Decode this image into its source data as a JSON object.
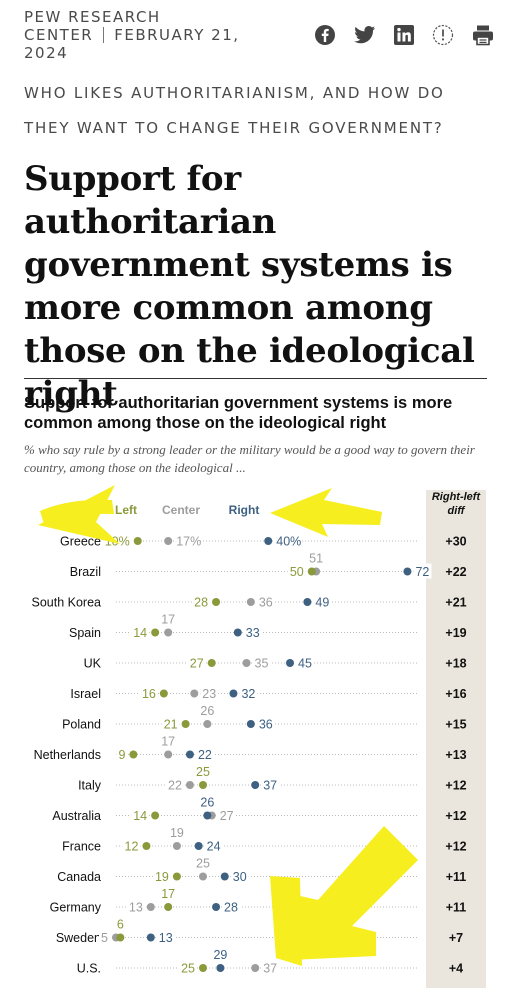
{
  "header": {
    "brand_line1": "PEW RESEARCH",
    "brand_line2": "CENTER",
    "date": "FEBRUARY 21,",
    "year": "2024",
    "share_icons": [
      "facebook-icon",
      "twitter-icon",
      "linkedin-icon",
      "info-icon",
      "print-icon"
    ]
  },
  "kicker": "WHO LIKES AUTHORITARIANISM, AND HOW DO THEY WANT TO CHANGE THEIR GOVERNMENT?",
  "headline": "Support for authoritarian government systems is more common among those on the ideological right",
  "colors": {
    "left": "#8a9a3b",
    "center": "#9d9d9d",
    "right": "#3e6182",
    "highlight": "#f6ee1f",
    "diff_bg": "#ebe6dd"
  },
  "chart_data": {
    "type": "scatter",
    "title": "Support for authoritarian government systems is more common among those on the ideological right",
    "subtitle": "% who say rule by a strong leader or the military would be a good way to govern their country, among those on the ideological ...",
    "legend": [
      "Left",
      "Center",
      "Right"
    ],
    "diff_header": "Right-left diff",
    "countries": [
      {
        "name": "Greece",
        "left": 10,
        "center": 17,
        "right": 40,
        "diff": "+30",
        "left_label": "10%",
        "center_label": "17%",
        "right_label": "40%"
      },
      {
        "name": "Brazil",
        "left": 50,
        "center": 51,
        "right": 72,
        "diff": "+22",
        "left_label": "50",
        "center_label": "51",
        "right_label": "72"
      },
      {
        "name": "South Korea",
        "left": 28,
        "center": 36,
        "right": 49,
        "diff": "+21",
        "left_label": "28",
        "center_label": "36",
        "right_label": "49"
      },
      {
        "name": "Spain",
        "left": 14,
        "center": 17,
        "right": 33,
        "diff": "+19",
        "left_label": "14",
        "center_label": "17",
        "right_label": "33"
      },
      {
        "name": "UK",
        "left": 27,
        "center": 35,
        "right": 45,
        "diff": "+18",
        "left_label": "27",
        "center_label": "35",
        "right_label": "45"
      },
      {
        "name": "Israel",
        "left": 16,
        "center": 23,
        "right": 32,
        "diff": "+16",
        "left_label": "16",
        "center_label": "23",
        "right_label": "32"
      },
      {
        "name": "Poland",
        "left": 21,
        "center": 26,
        "right": 36,
        "diff": "+15",
        "left_label": "21",
        "center_label": "26",
        "right_label": "36"
      },
      {
        "name": "Netherlands",
        "left": 9,
        "center": 17,
        "right": 22,
        "diff": "+13",
        "left_label": "9",
        "center_label": "17",
        "right_label": "22"
      },
      {
        "name": "Italy",
        "left": 25,
        "center": 22,
        "right": 37,
        "diff": "+12",
        "left_label": "25",
        "center_label": "22",
        "right_label": "37"
      },
      {
        "name": "Australia",
        "left": 14,
        "center": 27,
        "right": 26,
        "diff": "+12",
        "left_label": "14",
        "center_label": "27",
        "right_label": "26"
      },
      {
        "name": "France",
        "left": 12,
        "center": 19,
        "right": 24,
        "diff": "+12",
        "left_label": "12",
        "center_label": "19",
        "right_label": "24"
      },
      {
        "name": "Canada",
        "left": 19,
        "center": 25,
        "right": 30,
        "diff": "+11",
        "left_label": "19",
        "center_label": "25",
        "right_label": "30"
      },
      {
        "name": "Germany",
        "left": 17,
        "center": 13,
        "right": 28,
        "diff": "+11",
        "left_label": "17",
        "center_label": "13",
        "right_label": "28"
      },
      {
        "name": "Sweden",
        "left": 6,
        "center": 5,
        "right": 13,
        "diff": "+7",
        "left_label": "6",
        "center_label": "5",
        "right_label": "13"
      },
      {
        "name": "U.S.",
        "left": 25,
        "center": 37,
        "right": 29,
        "diff": "+4",
        "left_label": "25",
        "center_label": "37",
        "right_label": "29"
      }
    ]
  }
}
